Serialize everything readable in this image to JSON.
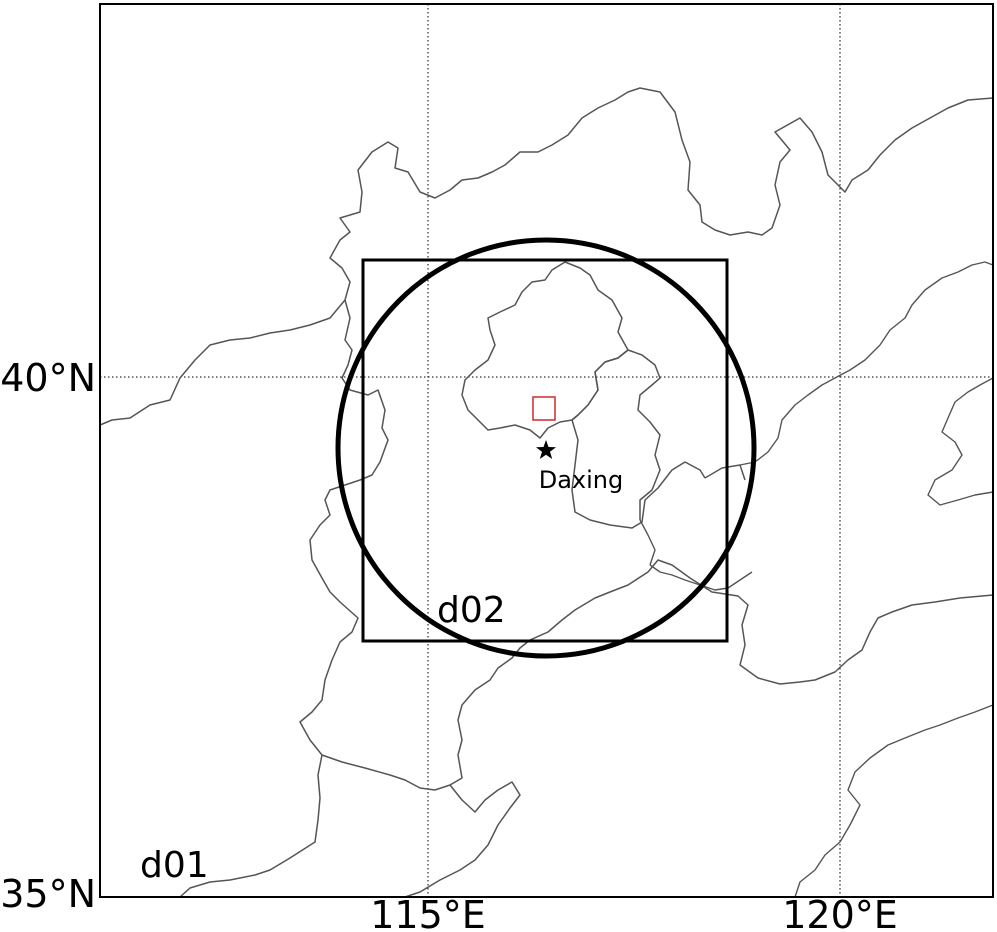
{
  "map": {
    "grid": {
      "lat_labels": [
        {
          "value": 40,
          "text": "40°N"
        },
        {
          "value": 35,
          "text": "35°N"
        }
      ],
      "lon_labels": [
        {
          "value": 115,
          "text": "115°E"
        },
        {
          "value": 120,
          "text": "120°E"
        }
      ]
    },
    "domains": {
      "outer": {
        "label": "d01"
      },
      "inner": {
        "label": "d02"
      }
    },
    "site": {
      "label": "Daxing",
      "marker": "star-icon"
    },
    "radar_range_ring": {
      "shape": "circle"
    },
    "highlight_box": {
      "color": "#d62728"
    },
    "colors": {
      "boundary": "#555555",
      "frame": "#000000",
      "highlight": "#d62728"
    }
  }
}
